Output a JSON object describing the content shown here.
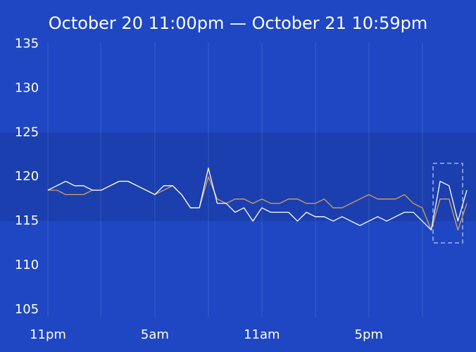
{
  "chart_data": {
    "type": "line",
    "title": "October 20  11:00pm  —  October 21  10:59pm",
    "categories": [
      "11pm",
      null,
      null,
      null,
      null,
      null,
      null,
      null,
      null,
      null,
      null,
      null,
      "5am",
      null,
      null,
      null,
      null,
      null,
      null,
      null,
      null,
      null,
      null,
      null,
      "11am",
      null,
      null,
      null,
      null,
      null,
      null,
      null,
      null,
      null,
      null,
      null,
      "5pm",
      null,
      null,
      null,
      null,
      null,
      null,
      null,
      null,
      null,
      null,
      null
    ],
    "series": [
      {
        "name": null,
        "color": "#ffffff",
        "values": [
          118.5,
          119,
          119.5,
          119,
          119,
          118.5,
          118.5,
          119,
          119.5,
          119.5,
          119,
          118.5,
          118,
          119,
          119,
          118,
          116.5,
          116.5,
          121,
          117,
          117,
          116,
          116.5,
          115,
          116.5,
          116,
          116,
          116,
          115,
          116,
          115.5,
          115.5,
          115,
          115.5,
          115,
          114.5,
          115,
          115.5,
          115,
          115.5,
          116,
          116,
          115,
          114,
          119.5,
          119,
          115,
          118.5
        ]
      },
      {
        "name": null,
        "color": "#d9a15a",
        "values": [
          118.5,
          118.5,
          118,
          118,
          118,
          118.5,
          118.5,
          119,
          119.5,
          119.5,
          119,
          118.5,
          118,
          118.5,
          119,
          118,
          116.5,
          116.5,
          120,
          117.5,
          117,
          117.5,
          117.5,
          117,
          117.5,
          117,
          117,
          117.5,
          117.5,
          117,
          117,
          117.5,
          116.5,
          116.5,
          117,
          117.5,
          118,
          117.5,
          117.5,
          117.5,
          118,
          117,
          116.5,
          114,
          117.5,
          117.5,
          114,
          117
        ]
      }
    ],
    "band": [
      115,
      125
    ],
    "ylim": [
      103,
      136
    ],
    "yticks": [
      105,
      110,
      115,
      120,
      125,
      130,
      135
    ]
  }
}
